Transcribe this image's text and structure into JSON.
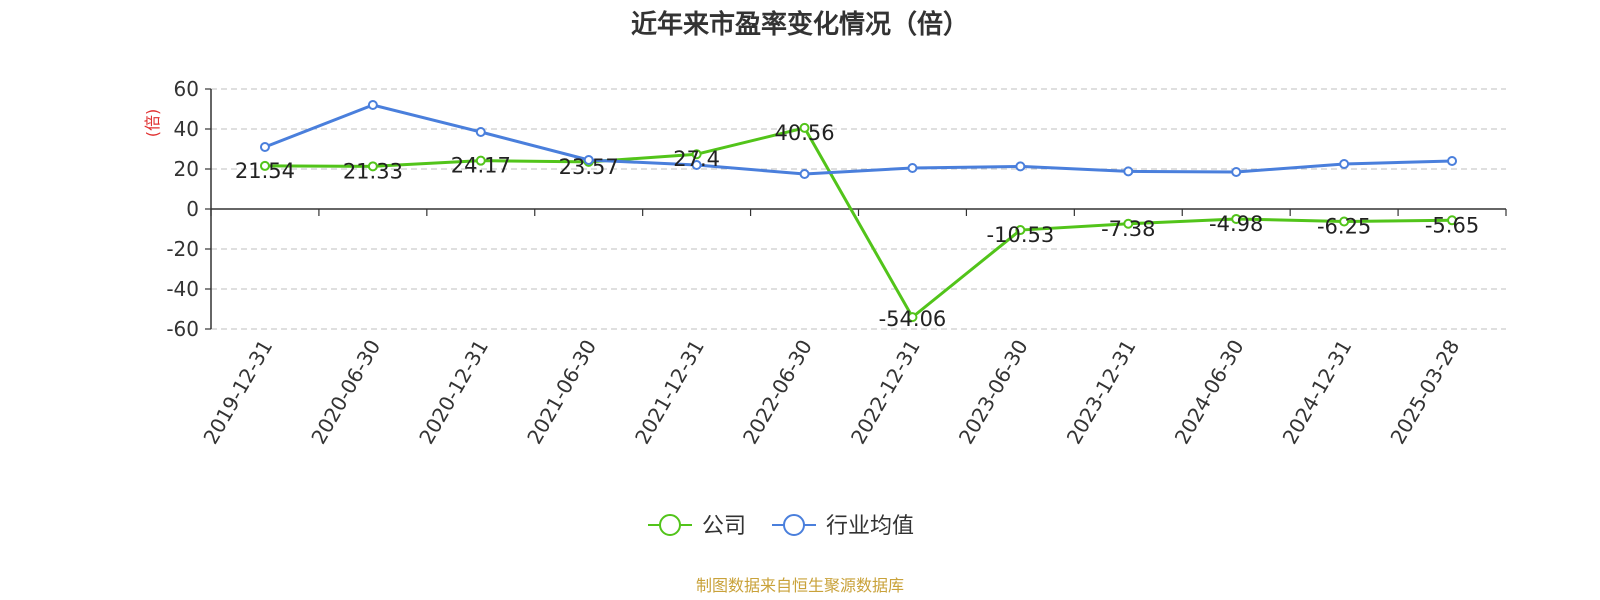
{
  "chart_data": {
    "type": "line",
    "title": "近年来市盈率变化情况（倍）",
    "ylabel": "(倍)",
    "xlabel": "",
    "categories": [
      "2019-12-31",
      "2020-06-30",
      "2020-12-31",
      "2021-06-30",
      "2021-12-31",
      "2022-06-30",
      "2022-12-31",
      "2023-06-30",
      "2023-12-31",
      "2024-06-30",
      "2024-12-31",
      "2025-03-28"
    ],
    "ylim": [
      -60,
      60
    ],
    "yticks": [
      60,
      40,
      20,
      0,
      -20,
      -40,
      -60
    ],
    "grid": true,
    "legend_position": "bottom",
    "series": [
      {
        "name": "公司",
        "color": "#52c41a",
        "values": [
          21.54,
          21.33,
          24.17,
          23.57,
          27.4,
          40.56,
          -54.06,
          -10.53,
          -7.38,
          -4.98,
          -6.25,
          -5.65
        ],
        "labels": [
          "21.54",
          "21.33",
          "24.17",
          "23.57",
          "27.4",
          "40.56",
          "-54.06",
          "-10.53",
          "-7.38",
          "-4.98",
          "-6.25",
          "-5.65"
        ]
      },
      {
        "name": "行业均值",
        "color": "#4a7fdc",
        "values": [
          31,
          52,
          38.5,
          24.5,
          22,
          17.5,
          20.5,
          21.3,
          18.8,
          18.5,
          22.5,
          24
        ]
      }
    ],
    "source_note": "制图数据来自恒生聚源数据库"
  }
}
